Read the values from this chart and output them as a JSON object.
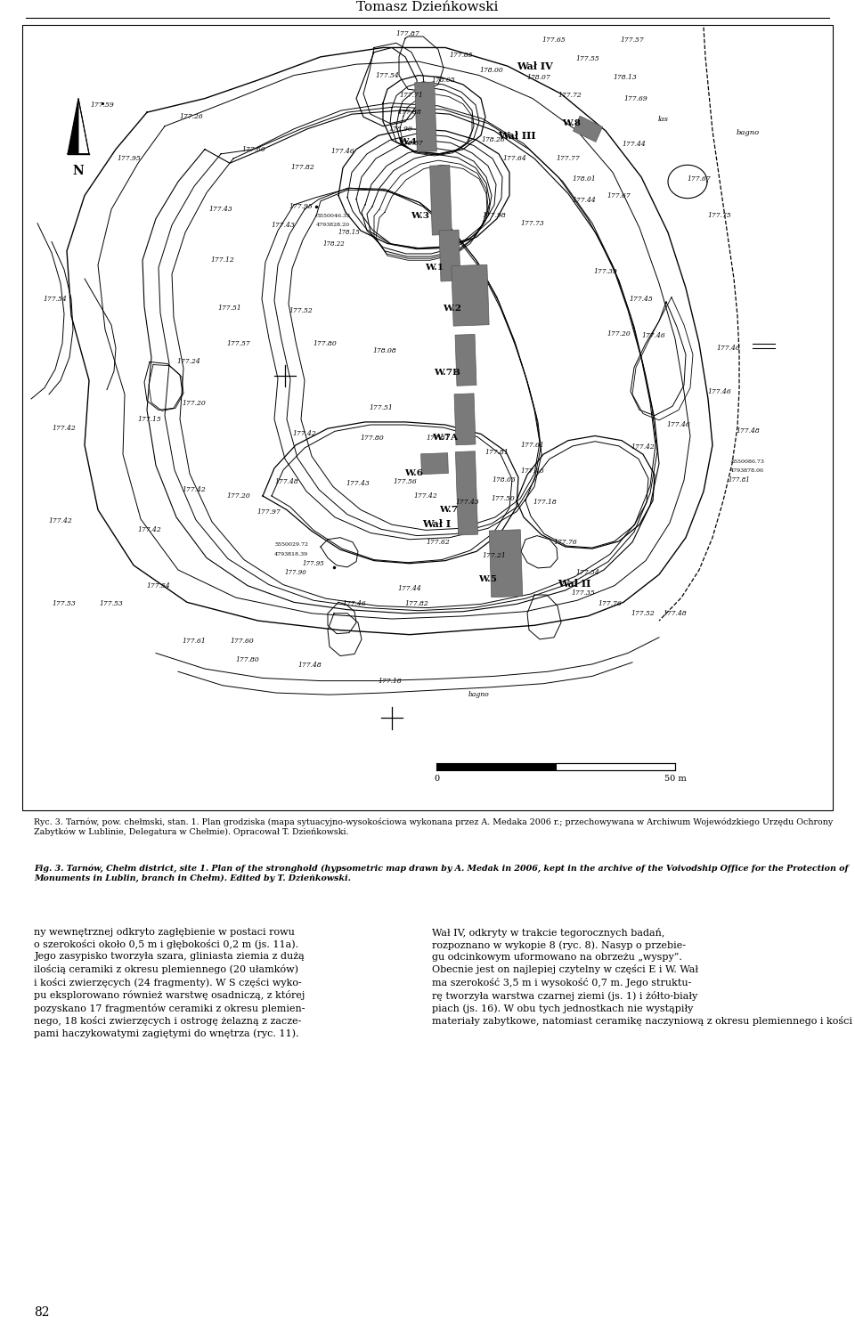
{
  "title": "Tomasz Dzieńkowski",
  "fig_caption_pl": "Ryc. 3. Tarnów, pow. chełmski, stan. 1. Plan grodziska (mapa sytuacyjno-wysokościowa wykonana przez A. Medaka 2006 r.; przechowywana w Archiwum Wojewódzkiego Urzędu Ochrony Zabytków w Lublinie, Delegatura w Chełmie). Opracował T. Dzieńkowski.",
  "fig_caption_en": "Fig. 3. Tarnów, Chełm district, site 1. Plan of the stronghold (hypsometric map drawn by A. Medak in 2006, kept in the archive of the Voivodship Office for the Protection of Monuments in Lublin, branch in Chełm). Edited by T. Dzieńkowski.",
  "text_left": "ny wewnętrznej odkryto zagłębienie w postaci rowu\no szerokości około 0,5 m i głębokości 0,2 m (js. 11a).\nJego zasypisko tworzyła szara, gliniasta ziemia z dużą\nilością ceramiki z okresu plemiennego (20 ułamków)\ni kości zwierzęcych (24 fragmenty). W S części wyko-\npu eksplorowano również warstwę osadniczą, z której\npozyskano 17 fragmentów ceramiki z okresu plemien-\nnego, 18 kości zwierzęcych i ostrogę żelazną z zacze-\npami haczykowatymi zagiętymi do wnętrza (ryc. 11).",
  "text_right": "Wał IV, odkryty w trakcie tegorocznych badań,\nrozpoznano w wykopie 8 (ryc. 8). Nasyp o przebie-\ngu odcinkowym uformowano na obrzeżu „wyspy”.\nObecnie jest on najlepiej czytelny w części E i W. Wał\nma szerokość 3,5 m i wysokość 0,7 m. Jego struktu-\nrę tworzyła warstwa czarnej ziemi (js. 1) i żółto-biały\npiach (js. 16). W obu tych jednostkach nie wystąpiły\nmateriały zabytkowe, natomiast ceramikę naczyniową z okresu plemiennego i kości zwierzęce pozyskano",
  "page_number": "82",
  "bg": "#ffffff"
}
